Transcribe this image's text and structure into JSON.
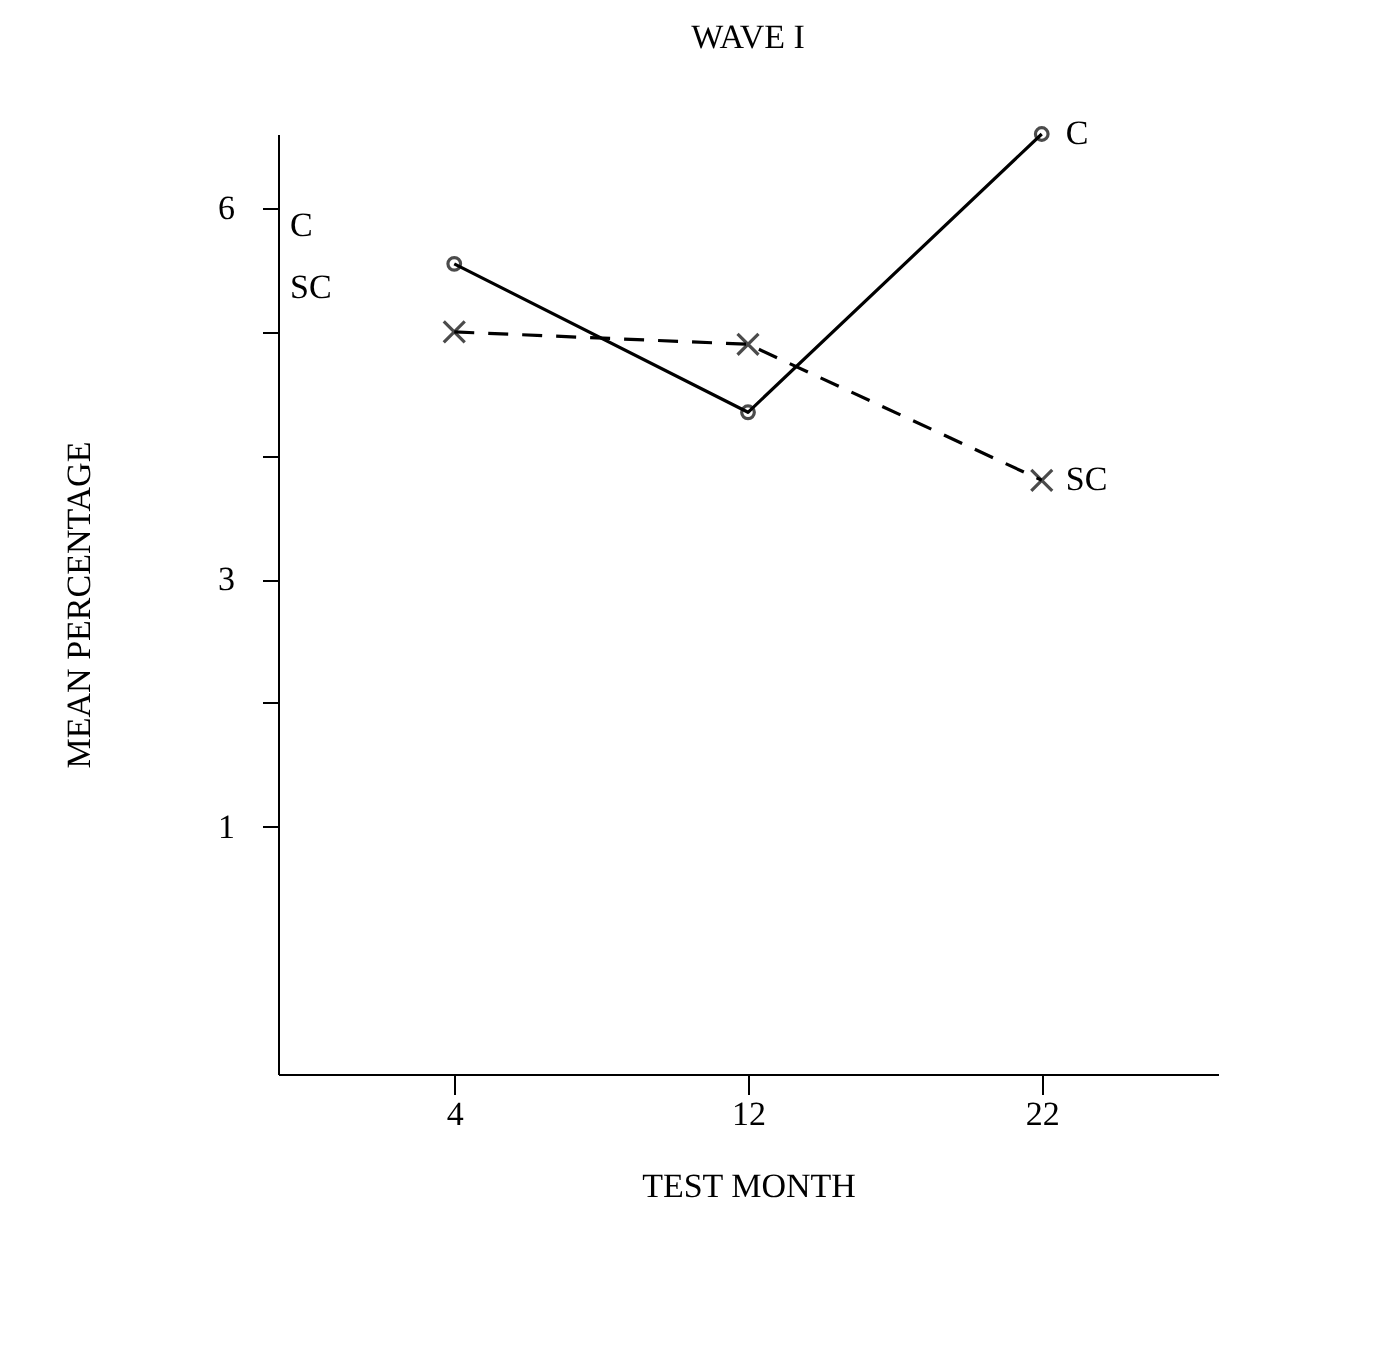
{
  "chart_data": {
    "type": "line",
    "title": "WAVE I",
    "xlabel": "TEST MONTH",
    "ylabel": "MEAN PERCENTAGE",
    "categories": [
      "4",
      "12",
      "22"
    ],
    "ylim": [
      -1,
      6.6
    ],
    "yticks": [
      1,
      {
        "value": 2,
        "label": null
      },
      3,
      {
        "value": 4,
        "label": null
      },
      {
        "value": 5,
        "label": null
      },
      6
    ],
    "series": [
      {
        "name": "C",
        "color": "#000000",
        "values": [
          5.55,
          4.35,
          6.6
        ],
        "marker": "circle",
        "line_style": "solid"
      },
      {
        "name": "SC",
        "color": "#000000",
        "values": [
          5.0,
          4.9,
          3.8
        ],
        "marker": "cross",
        "line_style": "dashed"
      }
    ],
    "annotations": [
      "C",
      "SC"
    ],
    "grid": false
  }
}
